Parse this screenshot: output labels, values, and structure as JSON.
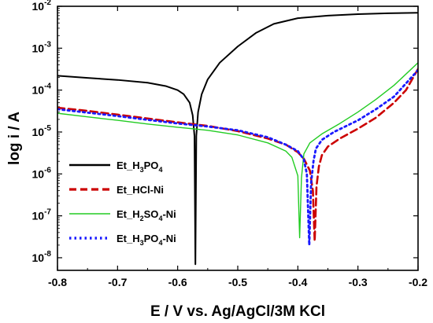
{
  "chart_data": {
    "type": "line",
    "xlabel": "E / V vs. Ag/AgCl/3M KCl",
    "ylabel": "log i / A",
    "xlim": [
      -0.8,
      -0.2
    ],
    "ylim": [
      5e-09,
      0.01
    ],
    "y_scale": "log",
    "x_ticks": [
      "-0.8",
      "-0.7",
      "-0.6",
      "-0.5",
      "-0.4",
      "-0.3",
      "-0.2"
    ],
    "y_ticks": [
      {
        "base": "10",
        "exp": "-8"
      },
      {
        "base": "10",
        "exp": "-7"
      },
      {
        "base": "10",
        "exp": "-6"
      },
      {
        "base": "10",
        "exp": "-5"
      },
      {
        "base": "10",
        "exp": "-4"
      },
      {
        "base": "10",
        "exp": "-3"
      },
      {
        "base": "10",
        "exp": "-2"
      }
    ],
    "legend_position": "bottom-left",
    "series": [
      {
        "name": "Et_H3PO4",
        "legend_parts": [
          {
            "t": "Et_H",
            "sub": false
          },
          {
            "t": "3",
            "sub": true
          },
          {
            "t": "PO",
            "sub": false
          },
          {
            "t": "4",
            "sub": true
          }
        ],
        "color": "#000000",
        "style": "solid",
        "points": [
          [
            -0.8,
            0.00022
          ],
          [
            -0.75,
            0.000195
          ],
          [
            -0.7,
            0.000175
          ],
          [
            -0.65,
            0.00015
          ],
          [
            -0.62,
            0.000125
          ],
          [
            -0.6,
            0.0001
          ],
          [
            -0.59,
            8e-05
          ],
          [
            -0.58,
            5e-05
          ],
          [
            -0.575,
            2.5e-05
          ],
          [
            -0.572,
            8e-06
          ],
          [
            -0.5705,
            7e-09
          ],
          [
            -0.569,
            8e-06
          ],
          [
            -0.566,
            3e-05
          ],
          [
            -0.56,
            8e-05
          ],
          [
            -0.55,
            0.00018
          ],
          [
            -0.53,
            0.00045
          ],
          [
            -0.5,
            0.0011
          ],
          [
            -0.47,
            0.0023
          ],
          [
            -0.44,
            0.0038
          ],
          [
            -0.4,
            0.0052
          ],
          [
            -0.35,
            0.006
          ],
          [
            -0.3,
            0.0065
          ],
          [
            -0.25,
            0.0068
          ],
          [
            -0.2,
            0.007
          ]
        ]
      },
      {
        "name": "Et_HCl-Ni",
        "legend_parts": [
          {
            "t": "Et_HCl-Ni",
            "sub": false
          }
        ],
        "color": "#cc0000",
        "style": "dashed",
        "points": [
          [
            -0.8,
            3.8e-05
          ],
          [
            -0.75,
            3.2e-05
          ],
          [
            -0.7,
            2.6e-05
          ],
          [
            -0.65,
            2.1e-05
          ],
          [
            -0.6,
            1.7e-05
          ],
          [
            -0.55,
            1.4e-05
          ],
          [
            -0.5,
            1.05e-05
          ],
          [
            -0.45,
            7e-06
          ],
          [
            -0.42,
            5e-06
          ],
          [
            -0.4,
            3.3e-06
          ],
          [
            -0.39,
            2.3e-06
          ],
          [
            -0.38,
            1.2e-06
          ],
          [
            -0.375,
            4e-07
          ],
          [
            -0.372,
            2.5e-08
          ],
          [
            -0.369,
            5e-07
          ],
          [
            -0.365,
            1.5e-06
          ],
          [
            -0.36,
            2.8e-06
          ],
          [
            -0.35,
            4.5e-06
          ],
          [
            -0.33,
            7e-06
          ],
          [
            -0.3,
            1.2e-05
          ],
          [
            -0.27,
            2.2e-05
          ],
          [
            -0.24,
            5e-05
          ],
          [
            -0.22,
            0.0001
          ],
          [
            -0.2,
            0.00032
          ]
        ]
      },
      {
        "name": "Et_H2SO4-Ni",
        "legend_parts": [
          {
            "t": "Et_H",
            "sub": false
          },
          {
            "t": "2",
            "sub": true
          },
          {
            "t": "SO",
            "sub": false
          },
          {
            "t": "4",
            "sub": true
          },
          {
            "t": "-Ni",
            "sub": false
          }
        ],
        "color": "#22cc22",
        "style": "solid",
        "points": [
          [
            -0.8,
            2.8e-05
          ],
          [
            -0.75,
            2.3e-05
          ],
          [
            -0.7,
            1.9e-05
          ],
          [
            -0.65,
            1.55e-05
          ],
          [
            -0.6,
            1.3e-05
          ],
          [
            -0.55,
            1.1e-05
          ],
          [
            -0.5,
            8.5e-06
          ],
          [
            -0.45,
            5.5e-06
          ],
          [
            -0.42,
            3.5e-06
          ],
          [
            -0.41,
            2.5e-06
          ],
          [
            -0.4,
            9e-07
          ],
          [
            -0.397,
            3e-08
          ],
          [
            -0.394,
            8e-07
          ],
          [
            -0.39,
            3e-06
          ],
          [
            -0.38,
            5.5e-06
          ],
          [
            -0.36,
            9e-06
          ],
          [
            -0.33,
            1.6e-05
          ],
          [
            -0.3,
            3e-05
          ],
          [
            -0.27,
            6e-05
          ],
          [
            -0.24,
            0.00013
          ],
          [
            -0.2,
            0.00045
          ]
        ]
      },
      {
        "name": "Et_H3PO4-Ni",
        "legend_parts": [
          {
            "t": "Et_H",
            "sub": false
          },
          {
            "t": "3",
            "sub": true
          },
          {
            "t": "PO",
            "sub": false
          },
          {
            "t": "4",
            "sub": true
          },
          {
            "t": "-Ni",
            "sub": false
          }
        ],
        "color": "#1a1aff",
        "style": "dotted",
        "points": [
          [
            -0.8,
            3.5e-05
          ],
          [
            -0.75,
            2.9e-05
          ],
          [
            -0.7,
            2.4e-05
          ],
          [
            -0.65,
            1.95e-05
          ],
          [
            -0.6,
            1.6e-05
          ],
          [
            -0.55,
            1.35e-05
          ],
          [
            -0.5,
            1.1e-05
          ],
          [
            -0.45,
            7.5e-06
          ],
          [
            -0.42,
            5e-06
          ],
          [
            -0.4,
            3.5e-06
          ],
          [
            -0.39,
            2.2e-06
          ],
          [
            -0.385,
            1e-06
          ],
          [
            -0.381,
            2e-08
          ],
          [
            -0.378,
            6e-07
          ],
          [
            -0.374,
            2e-06
          ],
          [
            -0.37,
            4e-06
          ],
          [
            -0.36,
            6.5e-06
          ],
          [
            -0.34,
            1e-05
          ],
          [
            -0.3,
            1.9e-05
          ],
          [
            -0.27,
            3.5e-05
          ],
          [
            -0.24,
            7e-05
          ],
          [
            -0.2,
            0.0003
          ]
        ]
      }
    ]
  }
}
